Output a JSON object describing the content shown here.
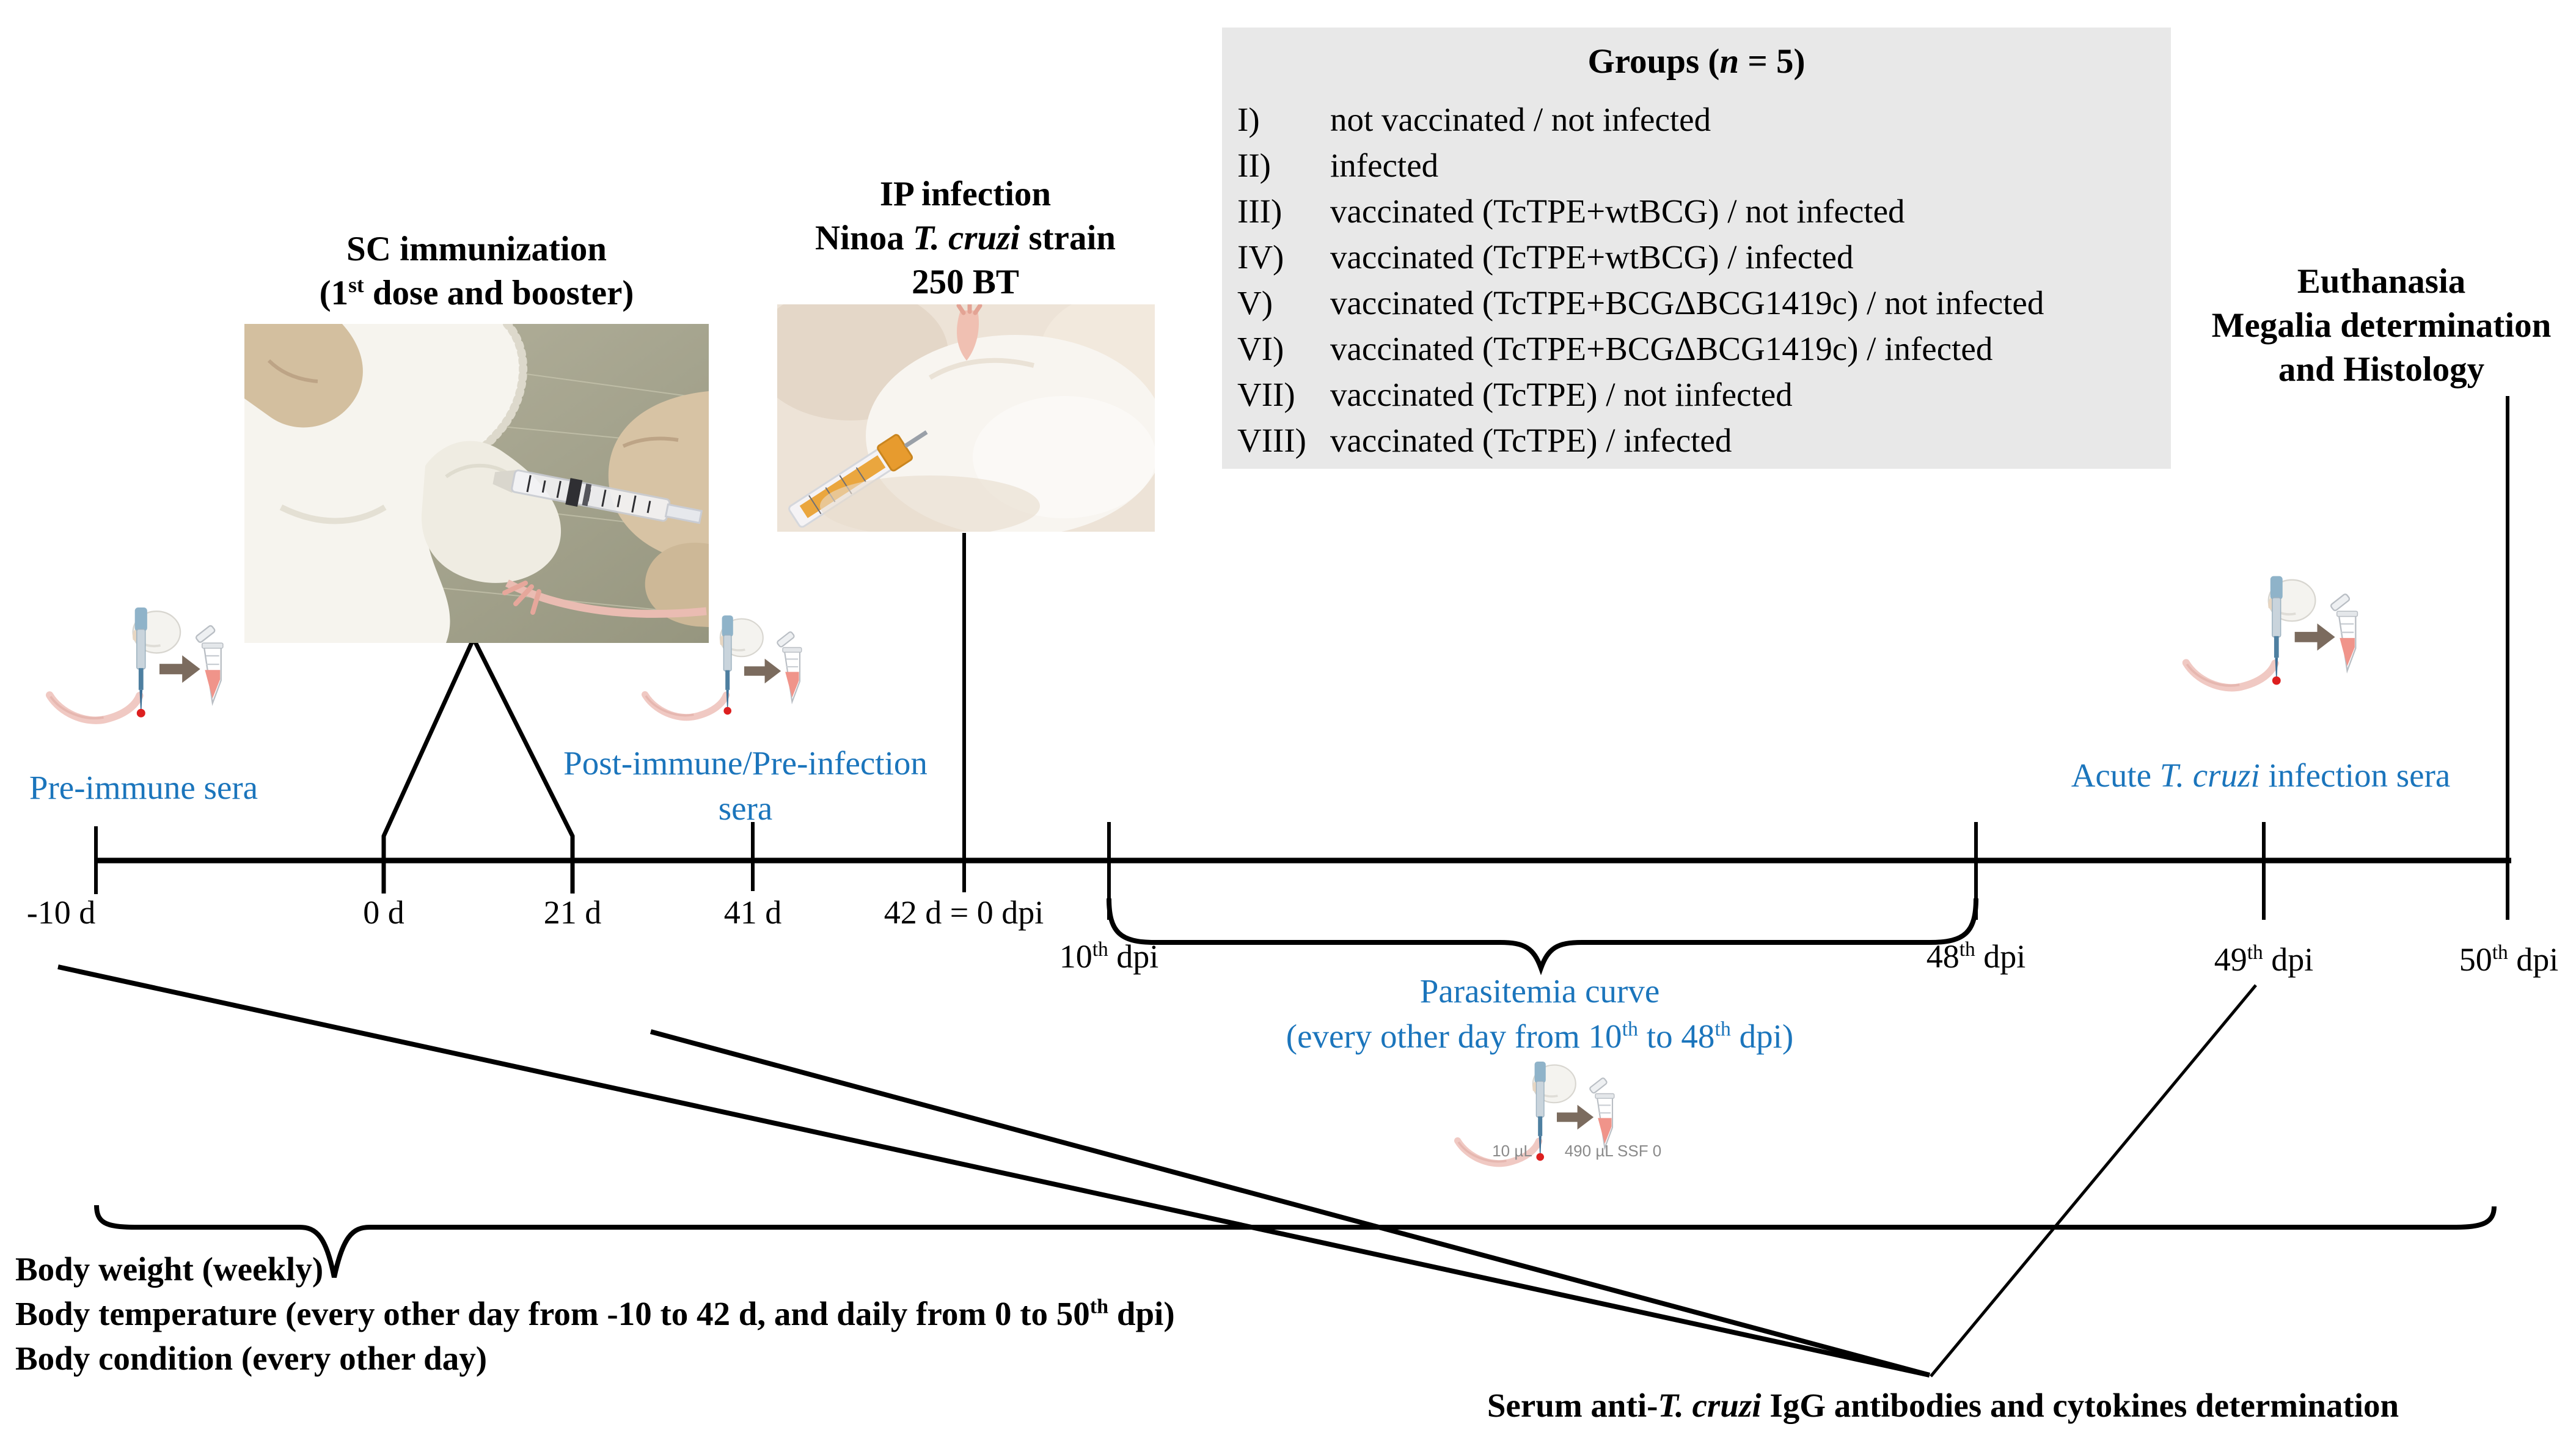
{
  "colors": {
    "blue": "#1b75bc",
    "box_bg": "#e8e8e8",
    "ink": "#000000",
    "muted_label": "#8a8a8a"
  },
  "groups_box": {
    "title_parts": [
      {
        "t": "Groups ("
      },
      {
        "i": "n"
      },
      {
        "t": " = 5)"
      }
    ],
    "items": [
      {
        "numeral": "I)",
        "text": "not vaccinated / not infected"
      },
      {
        "numeral": "II)",
        "text": "infected"
      },
      {
        "numeral": "III)",
        "text": "vaccinated (TcTPE+wtBCG) / not infected"
      },
      {
        "numeral": "IV)",
        "text": "vaccinated (TcTPE+wtBCG) / infected"
      },
      {
        "numeral": "V)",
        "text": "vaccinated (TcTPE+BCGΔBCG1419c) / not infected"
      },
      {
        "numeral": "VI)",
        "text": "vaccinated (TcTPE+BCGΔBCG1419c) / infected"
      },
      {
        "numeral": "VII)",
        "text": "vaccinated (TcTPE) / not iinfected"
      },
      {
        "numeral": "VIII)",
        "text": "vaccinated (TcTPE) / infected"
      }
    ]
  },
  "sc_block": {
    "line1": "SC immunization",
    "line2_parts": [
      {
        "t": "(1"
      },
      {
        "sup": "st"
      },
      {
        "t": " dose and booster)"
      }
    ]
  },
  "ip_block": {
    "line1": "IP infection",
    "line2_parts": [
      {
        "t": "Ninoa "
      },
      {
        "i": "T. cruzi"
      },
      {
        "t": " strain"
      }
    ],
    "line3": "250 BT"
  },
  "euthanasia_block": {
    "line1": "Euthanasia",
    "line2": "Megalia determination",
    "line3": "and Histology"
  },
  "sera_labels": {
    "pre": "Pre-immune sera",
    "post_line1": "Post-immune/Pre-infection",
    "post_line2": "sera",
    "acute_parts": [
      {
        "t": "Acute "
      },
      {
        "i": "T. cruzi"
      },
      {
        "t": " infection sera"
      }
    ]
  },
  "timeline": {
    "d_labels": [
      "-10 d",
      "0 d",
      "21 d",
      "41 d",
      "42 d = 0 dpi"
    ],
    "dpi_labels": [
      [
        {
          "t": "10"
        },
        {
          "sup": "th"
        },
        {
          "t": " dpi"
        }
      ],
      [
        {
          "t": "48"
        },
        {
          "sup": "th"
        },
        {
          "t": " dpi"
        }
      ],
      [
        {
          "t": "49"
        },
        {
          "sup": "th"
        },
        {
          "t": " dpi"
        }
      ],
      [
        {
          "t": "50"
        },
        {
          "sup": "th"
        },
        {
          "t": " dpi"
        }
      ]
    ]
  },
  "parasitemia": {
    "line1": "Parasitemia curve",
    "line2_parts": [
      {
        "t": "(every other day from 10"
      },
      {
        "sup": "th"
      },
      {
        "t": " to 48"
      },
      {
        "sup": "th"
      },
      {
        "t": " dpi)"
      }
    ]
  },
  "sampling_icon_labels": {
    "volume": "10 µL",
    "diluent": "490 µL SSF 0"
  },
  "monitoring": {
    "line1": "Body weight (weekly)",
    "line2_parts": [
      {
        "t": "Body temperature (every other day from -10 to 42 d, and daily from 0 to 50"
      },
      {
        "sup": "th"
      },
      {
        "t": " dpi)"
      }
    ],
    "line3": "Body condition (every other day)"
  },
  "serum_parts": [
    {
      "t": "Serum anti-"
    },
    {
      "i": "T. cruzi"
    },
    {
      "t": " IgG antibodies and cytokines determination"
    }
  ]
}
